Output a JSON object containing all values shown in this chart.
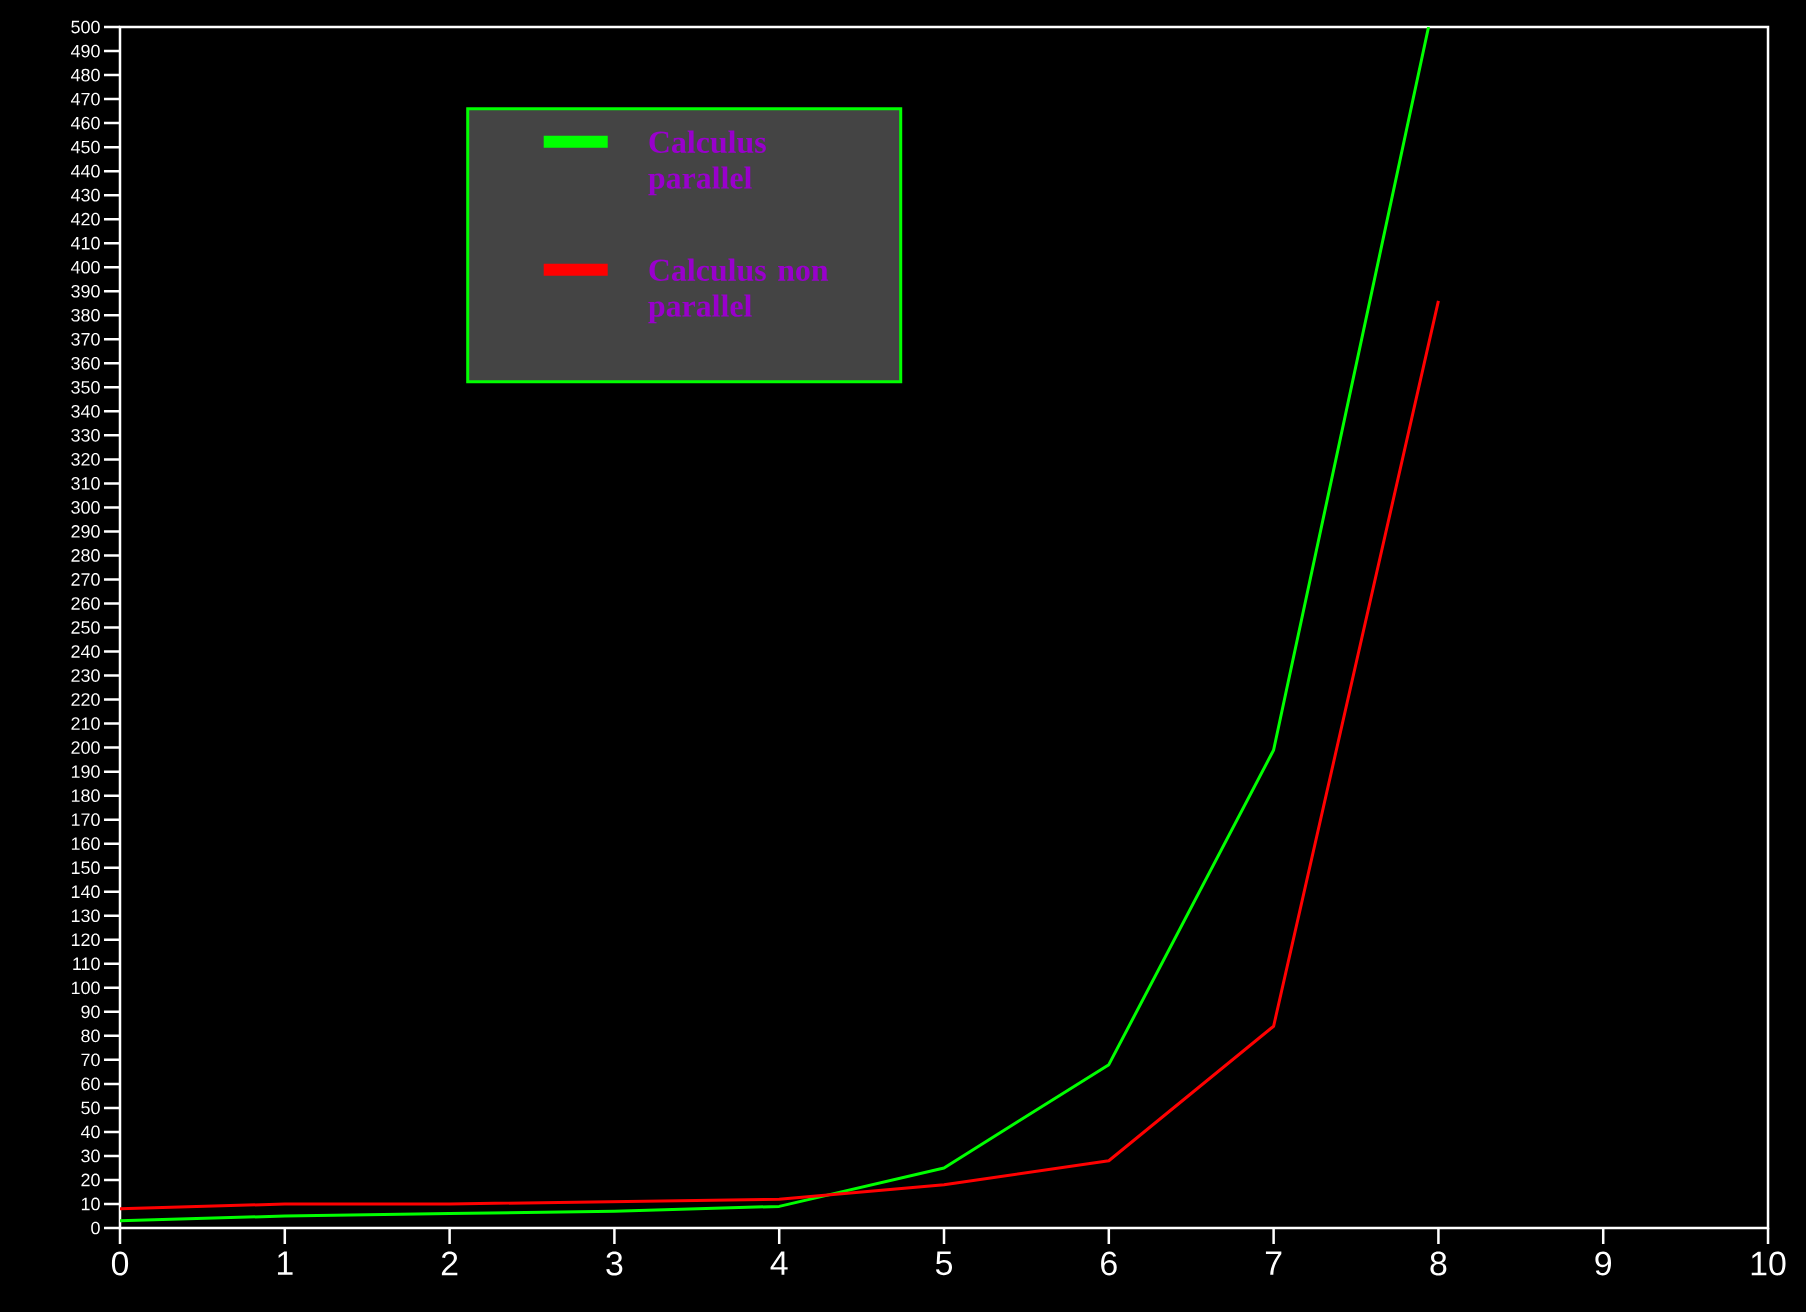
{
  "chart_data": {
    "type": "line",
    "x": [
      0,
      1,
      2,
      3,
      4,
      5,
      6,
      7,
      8
    ],
    "series": [
      {
        "name": "Calculus parallel",
        "color": "#00ff00",
        "x": [
          0,
          1,
          2,
          3,
          4,
          5,
          6,
          7,
          7.94
        ],
        "values": [
          3,
          5,
          6,
          7,
          9,
          25,
          68,
          199,
          500
        ]
      },
      {
        "name": "Calculus non parallel",
        "color": "#ff0000",
        "values": [
          8,
          10,
          10,
          11,
          12,
          18,
          28,
          84,
          386
        ]
      }
    ],
    "xlim": [
      0,
      10
    ],
    "ylim": [
      0,
      500
    ],
    "xticks": [
      0,
      1,
      2,
      3,
      4,
      5,
      6,
      7,
      8,
      9,
      10
    ],
    "yticks": [
      0,
      10,
      20,
      30,
      40,
      50,
      60,
      70,
      80,
      90,
      100,
      110,
      120,
      130,
      140,
      150,
      160,
      170,
      180,
      190,
      200,
      210,
      220,
      230,
      240,
      250,
      260,
      270,
      280,
      290,
      300,
      310,
      320,
      330,
      340,
      350,
      360,
      370,
      380,
      390,
      400,
      410,
      420,
      430,
      440,
      450,
      460,
      470,
      480,
      490,
      500
    ],
    "legend": "top left"
  }
}
